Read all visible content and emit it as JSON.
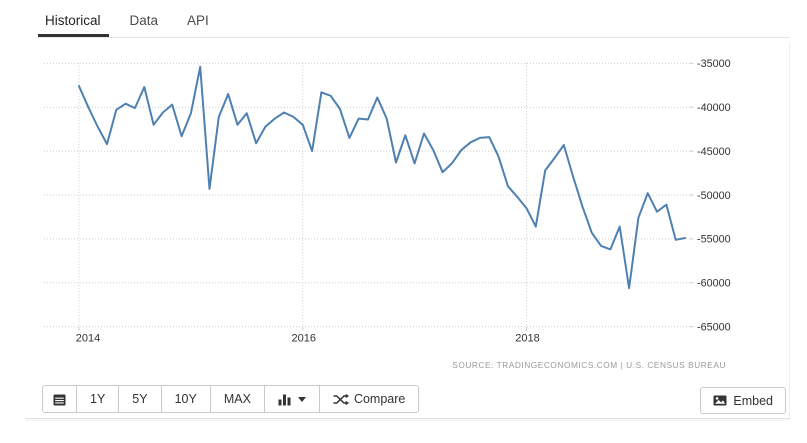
{
  "tabs": [
    {
      "label": "Historical",
      "active": true
    },
    {
      "label": "Data",
      "active": false
    },
    {
      "label": "API",
      "active": false
    }
  ],
  "toolbar": {
    "range_buttons": [
      "1Y",
      "5Y",
      "10Y",
      "MAX"
    ],
    "compare_label": "Compare",
    "embed_label": "Embed"
  },
  "chart_data": {
    "type": "line",
    "title": "",
    "frequency": "monthly",
    "start": "Jan 2014",
    "end": "Jun 2019",
    "x_tick_labels": [
      "2014",
      "2016",
      "2018"
    ],
    "x_tick_months": [
      0,
      24,
      48
    ],
    "y_ticks": [
      -35000,
      -40000,
      -45000,
      -50000,
      -55000,
      -60000,
      -65000
    ],
    "ylim": [
      -65000,
      -35000
    ],
    "values": [
      -37600,
      -40000,
      -42200,
      -44200,
      -40300,
      -39600,
      -40100,
      -37700,
      -42000,
      -40600,
      -39700,
      -43300,
      -40700,
      -35400,
      -49300,
      -41100,
      -38500,
      -42000,
      -40700,
      -44100,
      -42200,
      -41300,
      -40600,
      -41100,
      -42000,
      -45000,
      -38300,
      -38700,
      -40200,
      -43500,
      -41300,
      -41400,
      -38900,
      -41300,
      -46300,
      -43200,
      -46400,
      -43000,
      -44900,
      -47400,
      -46400,
      -44900,
      -44000,
      -43500,
      -43400,
      -45600,
      -49000,
      -50200,
      -51500,
      -53600,
      -47200,
      -45800,
      -44300,
      -47900,
      -51300,
      -54300,
      -55800,
      -56200,
      -53600,
      -60600,
      -52600,
      -49800,
      -51900,
      -51100,
      -55100,
      -54900
    ],
    "line_color": "#4e80b2",
    "grid_color": "#cccccc",
    "tick_text_color": "#333333",
    "source_text": "SOURCE:  TRADINGECONOMICS.COM  |  U.S. CENSUS BUREAU",
    "source_color": "#9a9a9a",
    "legend": "none",
    "grid": "dotted"
  }
}
